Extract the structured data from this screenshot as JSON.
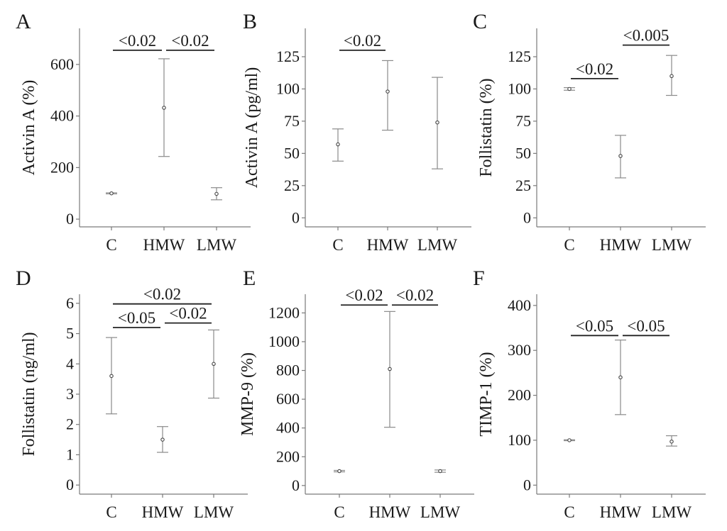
{
  "chart_data": [
    {
      "type": "scatter",
      "panel": "A",
      "ylabel": "Activin A (%)",
      "categories": [
        "C",
        "HMW",
        "LMW"
      ],
      "yticks": [
        0,
        200,
        400,
        600
      ],
      "ylim": [
        -30,
        740
      ],
      "values": [
        100,
        432,
        98
      ],
      "err_low": [
        98,
        243,
        75
      ],
      "err_high": [
        102,
        622,
        122
      ],
      "comparisons": [
        {
          "from": 0,
          "to": 1,
          "y": 655,
          "label": "<0.02"
        },
        {
          "from": 1,
          "to": 2,
          "y": 655,
          "label": "<0.02"
        }
      ]
    },
    {
      "type": "scatter",
      "panel": "B",
      "ylabel": "Activin A (pg/ml)",
      "categories": [
        "C",
        "HMW",
        "LMW"
      ],
      "yticks": [
        0,
        25,
        50,
        75,
        100,
        125
      ],
      "ylim": [
        -7,
        147
      ],
      "values": [
        57,
        98,
        74
      ],
      "err_low": [
        44,
        68,
        38
      ],
      "err_high": [
        69,
        122,
        109
      ],
      "comparisons": [
        {
          "from": 0,
          "to": 1,
          "y": 130,
          "label": "<0.02"
        }
      ]
    },
    {
      "type": "scatter",
      "panel": "C",
      "ylabel": "Follistatin (%)",
      "categories": [
        "C",
        "HMW",
        "LMW"
      ],
      "yticks": [
        0,
        25,
        50,
        75,
        100,
        125
      ],
      "ylim": [
        -7,
        147
      ],
      "values": [
        100,
        48,
        110
      ],
      "err_low": [
        99,
        31,
        95
      ],
      "err_high": [
        101,
        64,
        126
      ],
      "comparisons": [
        {
          "from": 0,
          "to": 1,
          "y": 108,
          "label": "<0.02"
        },
        {
          "from": 1,
          "to": 2,
          "y": 134,
          "label": "<0.005"
        }
      ]
    },
    {
      "type": "scatter",
      "panel": "D",
      "ylabel": "Follistatin  (ng/ml)",
      "categories": [
        "C",
        "HMW",
        "LMW"
      ],
      "yticks": [
        0,
        1,
        2,
        3,
        4,
        5,
        6
      ],
      "ylim": [
        -0.3,
        6.3
      ],
      "values": [
        3.6,
        1.5,
        4.0
      ],
      "err_low": [
        2.35,
        1.08,
        2.87
      ],
      "err_high": [
        4.87,
        1.93,
        5.12
      ],
      "comparisons": [
        {
          "from": 0,
          "to": 1,
          "y": 5.2,
          "label": "<0.05"
        },
        {
          "from": 1,
          "to": 2,
          "y": 5.35,
          "label": "<0.02"
        },
        {
          "from": 0,
          "to": 2,
          "y": 5.98,
          "label": "<0.02"
        }
      ]
    },
    {
      "type": "scatter",
      "panel": "E",
      "ylabel": "MMP-9 (%)",
      "categories": [
        "C",
        "HMW",
        "LMW"
      ],
      "yticks": [
        0,
        200,
        400,
        600,
        800,
        1000,
        1200
      ],
      "ylim": [
        -60,
        1330
      ],
      "values": [
        100,
        810,
        100
      ],
      "err_low": [
        95,
        405,
        92
      ],
      "err_high": [
        105,
        1210,
        108
      ],
      "comparisons": [
        {
          "from": 0,
          "to": 1,
          "y": 1255,
          "label": "<0.02"
        },
        {
          "from": 1,
          "to": 2,
          "y": 1255,
          "label": "<0.02"
        }
      ]
    },
    {
      "type": "scatter",
      "panel": "F",
      "ylabel": "TIMP-1 (%)",
      "categories": [
        "C",
        "HMW",
        "LMW"
      ],
      "yticks": [
        0,
        100,
        200,
        300,
        400
      ],
      "ylim": [
        -20,
        425
      ],
      "values": [
        100,
        240,
        97
      ],
      "err_low": [
        99,
        157,
        87
      ],
      "err_high": [
        101,
        323,
        110
      ],
      "comparisons": [
        {
          "from": 0,
          "to": 1,
          "y": 333,
          "label": "<0.05"
        },
        {
          "from": 1,
          "to": 2,
          "y": 333,
          "label": "<0.05"
        }
      ]
    }
  ]
}
